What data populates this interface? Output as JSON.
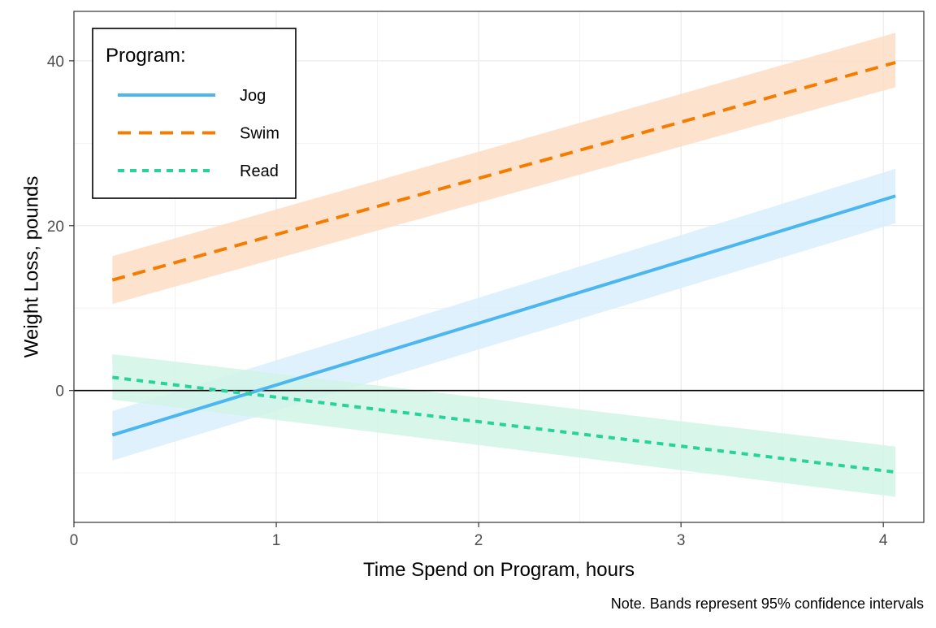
{
  "chart_data": {
    "type": "line",
    "xlabel": "Time Spend on Program, hours",
    "ylabel": "Weight Loss, pounds",
    "caption": "Note. Bands represent 95% confidence intervals",
    "xlim": [
      0,
      4.2
    ],
    "ylim": [
      -16,
      46
    ],
    "x_ticks": [
      0,
      1,
      2,
      3,
      4
    ],
    "y_ticks": [
      0,
      20,
      40
    ],
    "x_tick_labels": [
      "0",
      "1",
      "2",
      "3",
      "4"
    ],
    "y_tick_labels": [
      "0",
      "20",
      "40"
    ],
    "reference_line_y": 0,
    "grid": true,
    "legend": {
      "title": "Program:",
      "position": "top-left",
      "entries": [
        "Jog",
        "Swim",
        "Read"
      ]
    },
    "series": [
      {
        "name": "Jog",
        "color": "#4BB6F0",
        "band_color": "#D9EFFC",
        "linestyle": "solid",
        "x": [
          0.19,
          4.06
        ],
        "y": [
          -5.4,
          23.6
        ],
        "lower": [
          -8.5,
          20.3
        ],
        "upper": [
          -2.5,
          26.9
        ]
      },
      {
        "name": "Swim",
        "color": "#F57C00",
        "band_color": "#FDDEC4",
        "linestyle": "dashed",
        "x": [
          0.19,
          4.06
        ],
        "y": [
          13.4,
          39.8
        ],
        "lower": [
          10.5,
          36.8
        ],
        "upper": [
          16.3,
          43.4
        ]
      },
      {
        "name": "Read",
        "color": "#27D39B",
        "band_color": "#D2F4E8",
        "linestyle": "dotted",
        "x": [
          0.19,
          4.06
        ],
        "y": [
          1.6,
          -9.9
        ],
        "lower": [
          -1.1,
          -12.9
        ],
        "upper": [
          4.4,
          -6.8
        ]
      }
    ]
  }
}
